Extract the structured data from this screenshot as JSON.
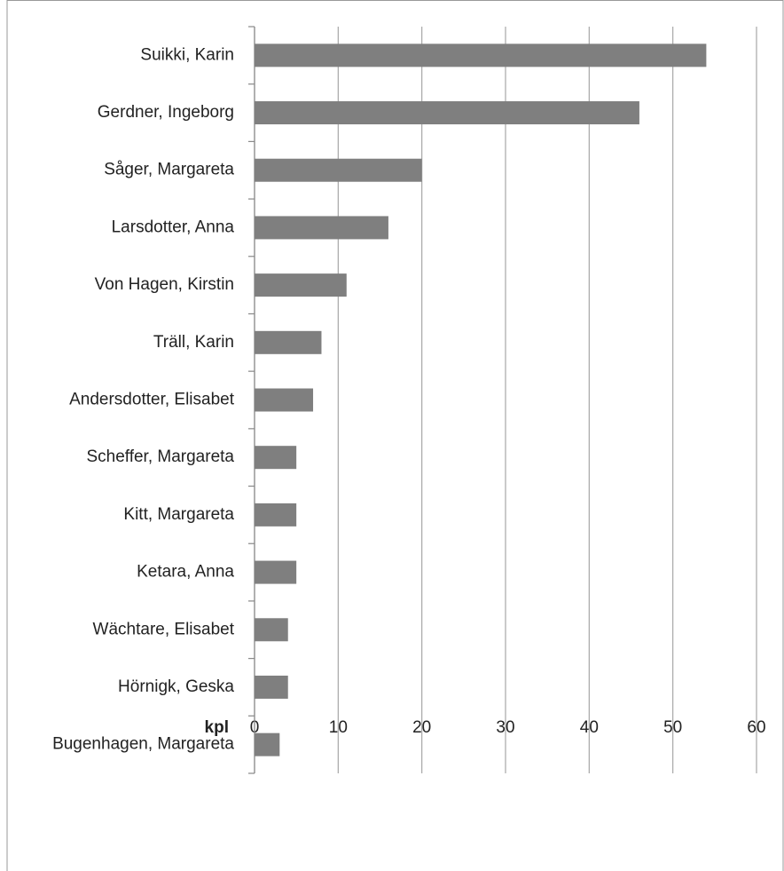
{
  "chart_data": {
    "type": "bar",
    "orientation": "horizontal",
    "x_label": "kpl",
    "categories": [
      "Suikki, Karin",
      "Gerdner, Ingeborg",
      "Såger, Margareta",
      "Larsdotter, Anna",
      "Von Hagen, Kirstin",
      "Träll, Karin",
      "Andersdotter, Elisabet",
      "Scheffer, Margareta",
      "Kitt, Margareta",
      "Ketara, Anna",
      "Wächtare, Elisabet",
      "Hörnigk, Geska",
      "Bugenhagen, Margareta"
    ],
    "values": [
      54,
      46,
      20,
      16,
      11,
      8,
      7,
      5,
      5,
      5,
      4,
      4,
      3
    ],
    "color": "#7f7f7f",
    "xlim": [
      0,
      60
    ],
    "xticks": [
      0,
      10,
      20,
      30,
      40,
      50,
      60
    ],
    "grid": true
  }
}
